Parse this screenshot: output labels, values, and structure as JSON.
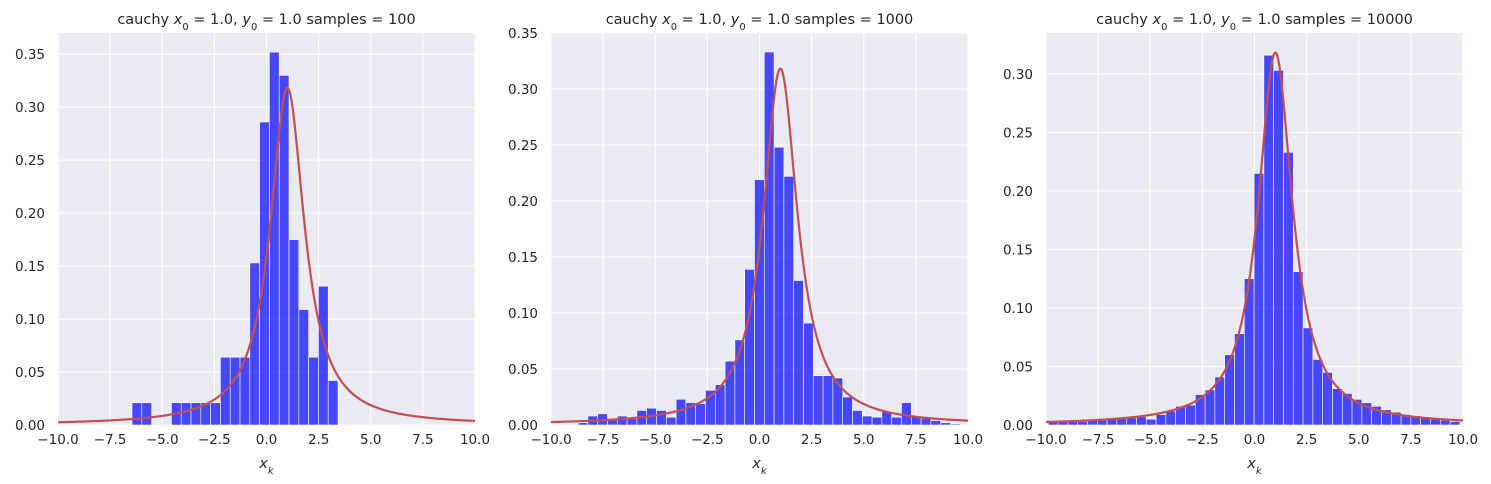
{
  "colors": {
    "bar": "#0000ff",
    "line": "#c44e52",
    "background": "#eaeaf2",
    "grid": "#ffffff"
  },
  "chart_data": [
    {
      "type": "bar",
      "title": "cauchy x_0 = 1.0, y_0 = 1.0  samples = 100",
      "title_parts": {
        "prefix": "cauchy ",
        "x0_sym": "x",
        "x0_sub": "0",
        "x0_val": " = 1.0, ",
        "y0_sym": "y",
        "y0_sub": "0",
        "y0_val": " = 1.0  samples = 100"
      },
      "xlabel": "x_k",
      "xlabel_parts": {
        "sym": "x",
        "sub": "k"
      },
      "xlim": [
        -10,
        10
      ],
      "ylim": [
        0,
        0.37
      ],
      "xticks": [
        -10,
        -7.5,
        -5,
        -2.5,
        0,
        2.5,
        5,
        7.5,
        10
      ],
      "xtick_labels": [
        "−10.0",
        "−7.5",
        "−5.0",
        "−2.5",
        "0.0",
        "2.5",
        "5.0",
        "7.5",
        "10.0"
      ],
      "yticks": [
        0,
        0.05,
        0.1,
        0.15,
        0.2,
        0.25,
        0.3,
        0.35
      ],
      "ytick_labels": [
        "0.00",
        "0.05",
        "0.10",
        "0.15",
        "0.20",
        "0.25",
        "0.30",
        "0.35"
      ],
      "bin_width": 0.47,
      "bins": [
        [
          -6.45,
          0.021
        ],
        [
          -5.98,
          0.021
        ],
        [
          -4.56,
          0.021
        ],
        [
          -4.09,
          0.021
        ],
        [
          -3.62,
          0.021
        ],
        [
          -3.15,
          0.021
        ],
        [
          -2.68,
          0.021
        ],
        [
          -2.21,
          0.064
        ],
        [
          -1.74,
          0.064
        ],
        [
          -1.27,
          0.064
        ],
        [
          -0.8,
          0.153
        ],
        [
          -0.33,
          0.286
        ],
        [
          0.14,
          0.352
        ],
        [
          0.61,
          0.33
        ],
        [
          1.08,
          0.175
        ],
        [
          1.55,
          0.109
        ],
        [
          2.02,
          0.064
        ],
        [
          2.49,
          0.131
        ],
        [
          2.96,
          0.042
        ]
      ],
      "pdf": {
        "x0": 1.0,
        "gamma": 1.0
      }
    },
    {
      "type": "bar",
      "title": "cauchy x_0 = 1.0, y_0 = 1.0  samples = 1000",
      "title_parts": {
        "prefix": "cauchy ",
        "x0_sym": "x",
        "x0_sub": "0",
        "x0_val": " = 1.0, ",
        "y0_sym": "y",
        "y0_sub": "0",
        "y0_val": " = 1.0  samples = 1000"
      },
      "xlabel": "x_k",
      "xlabel_parts": {
        "sym": "x",
        "sub": "k"
      },
      "xlim": [
        -10,
        10
      ],
      "ylim": [
        0,
        0.35
      ],
      "xticks": [
        -10,
        -7.5,
        -5,
        -2.5,
        0,
        2.5,
        5,
        7.5,
        10
      ],
      "xtick_labels": [
        "−10.0",
        "−7.5",
        "−5.0",
        "−2.5",
        "0.0",
        "2.5",
        "5.0",
        "7.5",
        "10.0"
      ],
      "yticks": [
        0,
        0.05,
        0.1,
        0.15,
        0.2,
        0.25,
        0.3,
        0.35
      ],
      "ytick_labels": [
        "0.00",
        "0.05",
        "0.10",
        "0.15",
        "0.20",
        "0.25",
        "0.30",
        "0.35"
      ],
      "bin_width": 0.47,
      "bins": [
        [
          -8.7,
          0.002
        ],
        [
          -8.23,
          0.008
        ],
        [
          -7.76,
          0.01
        ],
        [
          -7.29,
          0.005
        ],
        [
          -6.82,
          0.008
        ],
        [
          -6.35,
          0.007
        ],
        [
          -5.88,
          0.013
        ],
        [
          -5.41,
          0.015
        ],
        [
          -4.94,
          0.013
        ],
        [
          -4.47,
          0.007
        ],
        [
          -4.0,
          0.023
        ],
        [
          -3.53,
          0.02
        ],
        [
          -3.06,
          0.019
        ],
        [
          -2.59,
          0.031
        ],
        [
          -2.12,
          0.036
        ],
        [
          -1.65,
          0.057
        ],
        [
          -1.18,
          0.076
        ],
        [
          -0.71,
          0.139
        ],
        [
          -0.24,
          0.219
        ],
        [
          0.23,
          0.333
        ],
        [
          0.7,
          0.248
        ],
        [
          1.17,
          0.222
        ],
        [
          1.64,
          0.129
        ],
        [
          2.11,
          0.091
        ],
        [
          2.58,
          0.044
        ],
        [
          3.05,
          0.044
        ],
        [
          3.52,
          0.042
        ],
        [
          3.99,
          0.025
        ],
        [
          4.46,
          0.013
        ],
        [
          4.93,
          0.008
        ],
        [
          5.4,
          0.007
        ],
        [
          5.87,
          0.012
        ],
        [
          6.34,
          0.007
        ],
        [
          6.81,
          0.02
        ],
        [
          7.28,
          0.008
        ],
        [
          7.75,
          0.007
        ],
        [
          8.22,
          0.004
        ],
        [
          8.69,
          0.002
        ],
        [
          9.16,
          0.001
        ]
      ],
      "pdf": {
        "x0": 1.0,
        "gamma": 1.0
      }
    },
    {
      "type": "bar",
      "title": "cauchy x_0 = 1.0, y_0 = 1.0  samples = 10000",
      "title_parts": {
        "prefix": "cauchy ",
        "x0_sym": "x",
        "x0_sub": "0",
        "x0_val": " = 1.0, ",
        "y0_sym": "y",
        "y0_sub": "0",
        "y0_val": " = 1.0  samples = 10000"
      },
      "xlabel": "x_k",
      "xlabel_parts": {
        "sym": "x",
        "sub": "k"
      },
      "xlim": [
        -10,
        10
      ],
      "ylim": [
        0,
        0.335
      ],
      "xticks": [
        -10,
        -7.5,
        -5,
        -2.5,
        0,
        2.5,
        5,
        7.5,
        10
      ],
      "xtick_labels": [
        "−10.0",
        "−7.5",
        "−5.0",
        "−2.5",
        "0.0",
        "2.5",
        "5.0",
        "7.5",
        "10.0"
      ],
      "yticks": [
        0,
        0.05,
        0.1,
        0.15,
        0.2,
        0.25,
        0.3
      ],
      "ytick_labels": [
        "0.00",
        "0.05",
        "0.10",
        "0.15",
        "0.20",
        "0.25",
        "0.30"
      ],
      "bin_width": 0.47,
      "bins": [
        [
          -9.89,
          0.003
        ],
        [
          -9.42,
          0.003
        ],
        [
          -8.95,
          0.003
        ],
        [
          -8.48,
          0.003
        ],
        [
          -8.01,
          0.004
        ],
        [
          -7.54,
          0.004
        ],
        [
          -7.07,
          0.005
        ],
        [
          -6.6,
          0.006
        ],
        [
          -6.13,
          0.006
        ],
        [
          -5.66,
          0.007
        ],
        [
          -5.19,
          0.005
        ],
        [
          -4.72,
          0.009
        ],
        [
          -4.25,
          0.012
        ],
        [
          -3.78,
          0.016
        ],
        [
          -3.31,
          0.017
        ],
        [
          -2.84,
          0.026
        ],
        [
          -2.37,
          0.03
        ],
        [
          -1.9,
          0.041
        ],
        [
          -1.43,
          0.06
        ],
        [
          -0.96,
          0.078
        ],
        [
          -0.49,
          0.125
        ],
        [
          -0.02,
          0.215
        ],
        [
          0.45,
          0.316
        ],
        [
          0.92,
          0.303
        ],
        [
          1.39,
          0.233
        ],
        [
          1.86,
          0.131
        ],
        [
          2.33,
          0.083
        ],
        [
          2.8,
          0.056
        ],
        [
          3.27,
          0.045
        ],
        [
          3.74,
          0.031
        ],
        [
          4.21,
          0.027
        ],
        [
          4.68,
          0.022
        ],
        [
          5.15,
          0.019
        ],
        [
          5.62,
          0.016
        ],
        [
          6.09,
          0.013
        ],
        [
          6.56,
          0.011
        ],
        [
          7.03,
          0.009
        ],
        [
          7.5,
          0.008
        ],
        [
          7.97,
          0.007
        ],
        [
          8.44,
          0.006
        ],
        [
          8.91,
          0.004
        ],
        [
          9.38,
          0.003
        ]
      ],
      "pdf": {
        "x0": 1.0,
        "gamma": 1.0
      }
    }
  ]
}
